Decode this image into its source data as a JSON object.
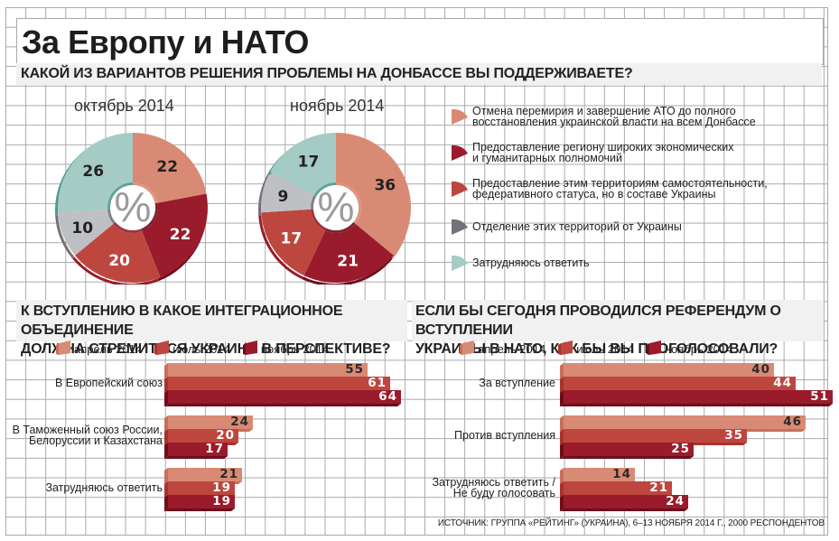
{
  "title": "За Европу и НАТО",
  "colors": {
    "c1": "#d98a74",
    "c2": "#bd473f",
    "c3": "#9a1b2c",
    "c4": "#727278",
    "c5": "#a5cbc5",
    "grey_seg": "#bfc0c4",
    "shadow1": "#c76f5d",
    "shadow2": "#a8332e",
    "shadow3": "#6d0e1c"
  },
  "section1": {
    "question": "КАКОЙ ИЗ ВАРИАНТОВ РЕШЕНИЯ ПРОБЛЕМЫ НА ДОНБАССЕ ВЫ ПОДДЕРЖИВАЕТЕ?",
    "center_symbol": "%",
    "legend": [
      "Отмена перемирия и завершение АТО до полного восстановления украинской власти на всем Донбассе",
      "Предоставление региону широких экономических и гуманитарных полномочий",
      "Предоставление этим территориям самостоятельности, федеративного статуса, но в составе Украины",
      "Отделение этих территорий от Украины",
      "Затрудняюсь ответить"
    ],
    "legend_lines": [
      [
        "Отмена перемирия и завершение АТО до полного",
        "восстановления украинской власти на всем Донбассе"
      ],
      [
        "Предоставление региону широких экономических",
        "и гуманитарных полномочий"
      ],
      [
        "Предоставление этим территориям самостоятельности,",
        "федеративного статуса, но в составе Украины"
      ],
      [
        "Отделение этих территорий от Украины"
      ],
      [
        "Затрудняюсь ответить"
      ]
    ]
  },
  "section2": {
    "question_line1": "К ВСТУПЛЕНИЮ В КАКОЕ ИНТЕГРАЦИОННОЕ ОБЪЕДИНЕНИЕ",
    "question_line2": "ДОЛЖНА СТРЕМИТЬСЯ УКРАИНА В ПЕРСПЕКТИВЕ?",
    "legend": [
      "апрель 2014",
      "июль 2014",
      "ноябрь 2014"
    ]
  },
  "section3": {
    "question_line1": "ЕСЛИ БЫ СЕГОДНЯ ПРОВОДИЛСЯ РЕФЕРЕНДУМ О ВСТУПЛЕНИИ",
    "question_line2": "УКРАИНЫ В НАТО, КАК БЫ ВЫ ПРОГОЛОСОВАЛИ?",
    "legend": [
      "апрель 2014",
      "июль 2014",
      "ноябрь 2014"
    ]
  },
  "source": "ИСТОЧНИК: ГРУППА «РЕЙТИНГ» (УКРАИНА), 6–13 НОЯБРЯ 2014 Г., 2000 РЕСПОНДЕНТОВ",
  "chart_data": [
    {
      "type": "pie",
      "title": "октябрь 2014",
      "unit": "%",
      "labels": [
        "Отмена перемирия и завершение АТО",
        "Широкие экономические и гуманитарные полномочия",
        "Самостоятельность, федеративный статус",
        "Отделение от Украины",
        "Затрудняюсь ответить"
      ],
      "values": [
        22,
        22,
        20,
        10,
        26
      ]
    },
    {
      "type": "pie",
      "title": "ноябрь 2014",
      "unit": "%",
      "labels": [
        "Отмена перемирия и завершение АТО",
        "Широкие экономические и гуманитарные полномочия",
        "Самостоятельность, федеративный статус",
        "Отделение от Украины",
        "Затрудняюсь ответить"
      ],
      "values": [
        36,
        21,
        17,
        9,
        17
      ]
    },
    {
      "type": "bar",
      "orientation": "horizontal",
      "title": "К вступлению в какое интеграционное объединение должна стремиться Украина в перспективе?",
      "categories": [
        [
          "В Европейский союз"
        ],
        [
          "В Таможенный союз России,",
          "Белоруссии и Казахстана"
        ],
        [
          "Затрудняюсь ответить"
        ]
      ],
      "series": [
        {
          "name": "апрель 2014",
          "values": [
            55,
            24,
            21
          ]
        },
        {
          "name": "июль 2014",
          "values": [
            61,
            20,
            19
          ]
        },
        {
          "name": "ноябрь 2014",
          "values": [
            64,
            17,
            19
          ]
        }
      ],
      "xlim": [
        0,
        64
      ]
    },
    {
      "type": "bar",
      "orientation": "horizontal",
      "title": "Если бы сегодня проводился референдум о вступлении Украины в НАТО, как бы вы проголосовали?",
      "categories": [
        [
          "За вступление"
        ],
        [
          "Против вступления"
        ],
        [
          "Затрудняюсь ответить /",
          "Не буду голосовать"
        ]
      ],
      "series": [
        {
          "name": "апрель 2014",
          "values": [
            40,
            46,
            14
          ]
        },
        {
          "name": "июль 2014",
          "values": [
            44,
            35,
            21
          ]
        },
        {
          "name": "ноябрь 2014",
          "values": [
            51,
            25,
            24
          ]
        }
      ],
      "xlim": [
        0,
        51
      ]
    }
  ]
}
